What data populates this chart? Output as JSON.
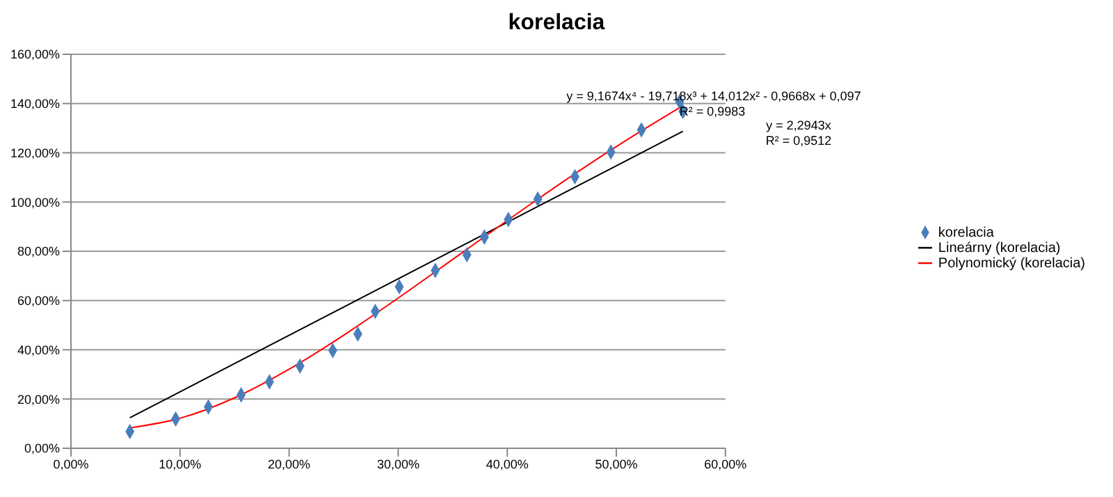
{
  "chart_data": {
    "type": "scatter",
    "title": "korelacia",
    "legend": "right",
    "grid": "y",
    "xlim": [
      0,
      0.6
    ],
    "ylim": [
      0,
      1.6
    ],
    "xticks": [
      {
        "value": 0,
        "label": "0,00%"
      },
      {
        "value": 0.1,
        "label": "10,00%"
      },
      {
        "value": 0.2,
        "label": "20,00%"
      },
      {
        "value": 0.3,
        "label": "30,00%"
      },
      {
        "value": 0.4,
        "label": "40,00%"
      },
      {
        "value": 0.5,
        "label": "50,00%"
      },
      {
        "value": 0.6,
        "label": "60,00%"
      }
    ],
    "yticks": [
      {
        "value": 0,
        "label": "0,00%"
      },
      {
        "value": 0.2,
        "label": "20,00%"
      },
      {
        "value": 0.4,
        "label": "40,00%"
      },
      {
        "value": 0.6,
        "label": "60,00%"
      },
      {
        "value": 0.8,
        "label": "80,00%"
      },
      {
        "value": 1,
        "label": "100,00%"
      },
      {
        "value": 1.2,
        "label": "120,00%"
      },
      {
        "value": 1.4,
        "label": "140,00%"
      },
      {
        "value": 1.6,
        "label": "160,00%"
      }
    ],
    "series": [
      {
        "name": "korelacia",
        "marker": "diamond",
        "color": "#4a7ebb",
        "x": [
          0.054,
          0.096,
          0.126,
          0.156,
          0.182,
          0.21,
          0.24,
          0.263,
          0.279,
          0.301,
          0.334,
          0.363,
          0.379,
          0.401,
          0.428,
          0.462,
          0.495,
          0.523,
          0.558,
          0.561
        ],
        "values": [
          0.068,
          0.119,
          0.168,
          0.217,
          0.27,
          0.334,
          0.397,
          0.464,
          0.556,
          0.656,
          0.722,
          0.786,
          0.858,
          0.929,
          1.012,
          1.103,
          1.203,
          1.293,
          1.408,
          1.368
        ]
      },
      {
        "name": "Lineárny (korelacia)",
        "type": "line",
        "marker": "none",
        "color": "#000000",
        "x": [
          0.054,
          0.561
        ],
        "values": [
          0.124,
          1.287
        ]
      },
      {
        "name": "Polynomický (korelacia)",
        "type": "line",
        "marker": "none",
        "color": "#ff0000",
        "x": [
          0.054,
          0.1,
          0.15,
          0.2,
          0.25,
          0.3,
          0.35,
          0.4,
          0.45,
          0.5,
          0.561
        ],
        "values": [
          0.083,
          0.122,
          0.205,
          0.321,
          0.459,
          0.61,
          0.767,
          0.925,
          1.079,
          1.225,
          1.391
        ]
      }
    ],
    "annotations": [
      "y = 9,1674x⁴ - 19,718x³ + 14,012x² - 0,9668x + 0,097",
      "R² = 0,9983",
      "y = 2,2943x",
      "R² = 0,9512"
    ]
  }
}
